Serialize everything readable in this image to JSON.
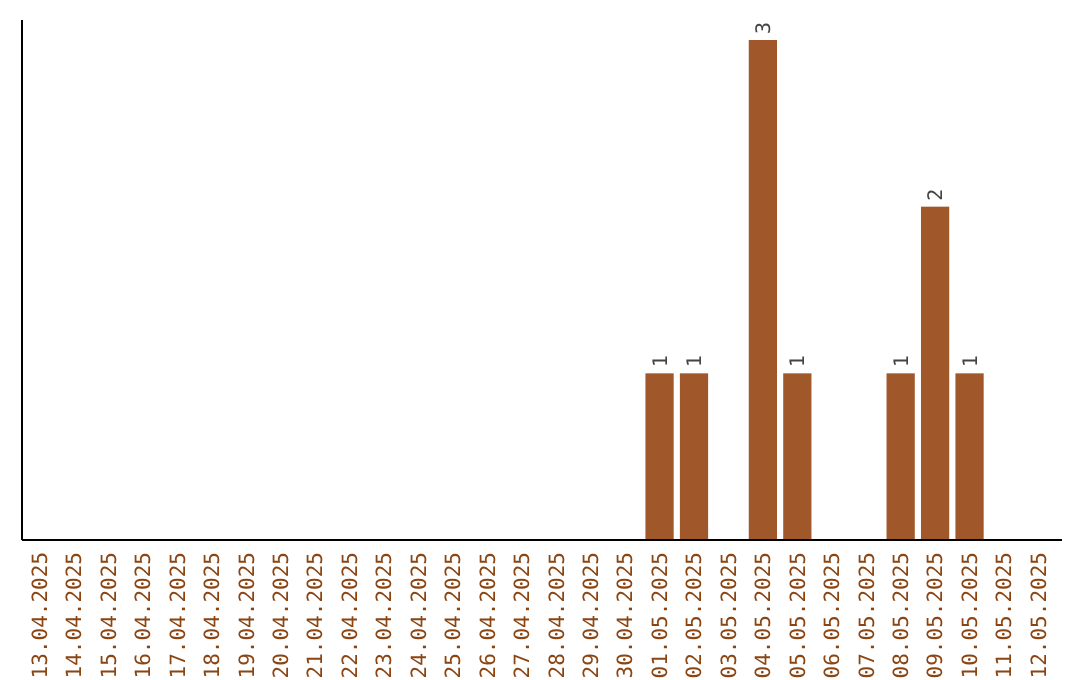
{
  "chart_data": {
    "type": "bar",
    "categories": [
      "13.04.2025",
      "14.04.2025",
      "15.04.2025",
      "16.04.2025",
      "17.04.2025",
      "18.04.2025",
      "19.04.2025",
      "20.04.2025",
      "21.04.2025",
      "22.04.2025",
      "23.04.2025",
      "24.04.2025",
      "25.04.2025",
      "26.04.2025",
      "27.04.2025",
      "28.04.2025",
      "29.04.2025",
      "30.04.2025",
      "01.05.2025",
      "02.05.2025",
      "03.05.2025",
      "04.05.2025",
      "05.05.2025",
      "06.05.2025",
      "07.05.2025",
      "08.05.2025",
      "09.05.2025",
      "10.05.2025",
      "11.05.2025",
      "12.05.2025"
    ],
    "values": [
      null,
      null,
      null,
      null,
      null,
      null,
      null,
      null,
      null,
      null,
      null,
      null,
      null,
      null,
      null,
      null,
      null,
      null,
      1,
      1,
      null,
      3,
      1,
      null,
      null,
      1,
      2,
      1,
      null,
      null
    ],
    "data_labels": true,
    "color": "#a0582a",
    "tick_labels": "x"
  }
}
